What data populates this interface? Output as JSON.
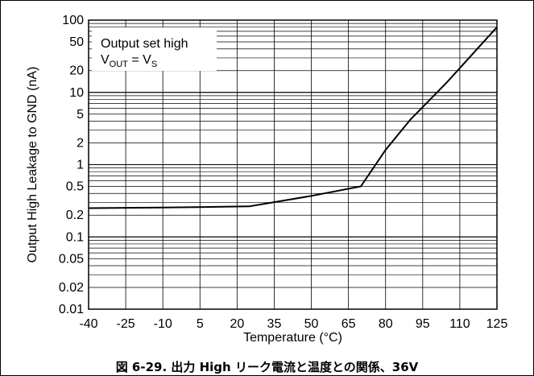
{
  "caption": "図 6-29. 出力 High リーク電流と温度との関係、36V",
  "chart_data": {
    "type": "line",
    "xlabel": "Temperature (°C)",
    "ylabel": "Output High Leakage to GND (nA)",
    "xlim": [
      -40,
      125
    ],
    "ylim": [
      0.01,
      100
    ],
    "yscale": "log",
    "grid": true,
    "x_ticks": [
      "-40",
      "-25",
      "-10",
      "5",
      "20",
      "35",
      "50",
      "65",
      "80",
      "95",
      "110",
      "125"
    ],
    "y_ticks": [
      {
        "value": 100,
        "label": "100"
      },
      {
        "value": 50,
        "label": "50"
      },
      {
        "value": 20,
        "label": "20"
      },
      {
        "value": 10,
        "label": "10"
      },
      {
        "value": 5,
        "label": "5"
      },
      {
        "value": 2,
        "label": "2"
      },
      {
        "value": 1,
        "label": "1"
      },
      {
        "value": 0.5,
        "label": "0.5"
      },
      {
        "value": 0.2,
        "label": "0.2"
      },
      {
        "value": 0.1,
        "label": "0.1"
      },
      {
        "value": 0.05,
        "label": "0.05"
      },
      {
        "value": 0.02,
        "label": "0.02"
      },
      {
        "value": 0.01,
        "label": "0.01"
      }
    ],
    "series": [
      {
        "x": [
          -40,
          -10,
          25,
          50,
          70,
          80,
          90,
          105,
          125
        ],
        "y": [
          0.25,
          0.255,
          0.265,
          0.37,
          0.5,
          1.6,
          4.2,
          14,
          80
        ]
      }
    ],
    "annotation": {
      "line1": "Output set high",
      "line2_main": "V",
      "line2_sub": "OUT",
      "line2_eq": " = V",
      "line2_sub2": "S"
    },
    "colors": {
      "line": "#000000",
      "grid": "#000000"
    }
  }
}
